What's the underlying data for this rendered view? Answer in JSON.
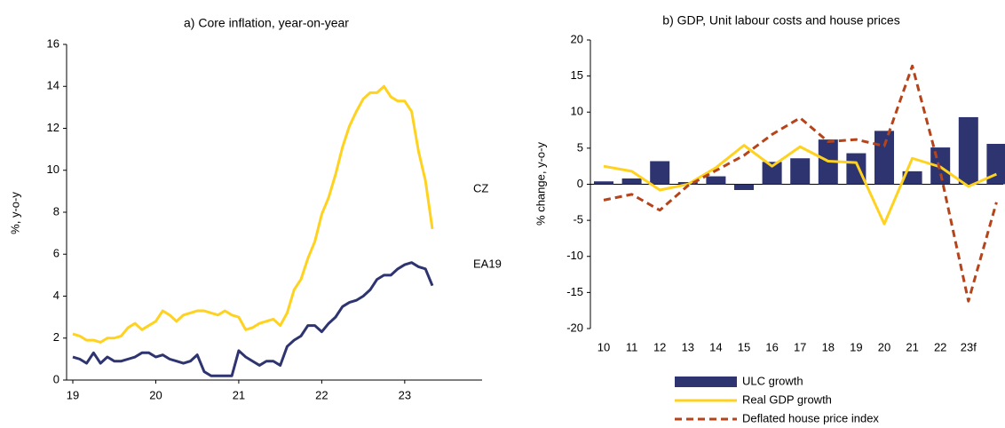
{
  "chart_data": [
    {
      "type": "line",
      "title": "a) Core inflation, year-on-year",
      "ylabel": "%, y-o-y",
      "categories": [
        "19",
        null,
        null,
        null,
        null,
        null,
        null,
        null,
        null,
        null,
        null,
        null,
        "20",
        null,
        null,
        null,
        null,
        null,
        null,
        null,
        null,
        null,
        null,
        null,
        "21",
        null,
        null,
        null,
        null,
        null,
        null,
        null,
        null,
        null,
        null,
        null,
        "22",
        null,
        null,
        null,
        null,
        null,
        null,
        null,
        null,
        null,
        null,
        null,
        "23",
        null,
        null,
        null,
        null
      ],
      "series": [
        {
          "name": "CZ",
          "color": "#ffd21f",
          "values": [
            2.2,
            2.1,
            1.9,
            1.9,
            1.8,
            2.0,
            2.0,
            2.1,
            2.5,
            2.7,
            2.4,
            2.6,
            2.8,
            3.3,
            3.1,
            2.8,
            3.1,
            3.2,
            3.3,
            3.3,
            3.2,
            3.1,
            3.3,
            3.1,
            3.0,
            2.4,
            2.5,
            2.7,
            2.8,
            2.9,
            2.6,
            3.2,
            4.3,
            4.8,
            5.8,
            6.6,
            7.9,
            8.7,
            9.8,
            11.1,
            12.1,
            12.8,
            13.4,
            13.7,
            13.7,
            14.0,
            13.5,
            13.3,
            13.3,
            12.8,
            10.9,
            9.5,
            7.2
          ]
        },
        {
          "name": "EA19",
          "color": "#2e3470",
          "values": [
            1.1,
            1.0,
            0.8,
            1.3,
            0.8,
            1.1,
            0.9,
            0.9,
            1.0,
            1.1,
            1.3,
            1.3,
            1.1,
            1.2,
            1.0,
            0.9,
            0.8,
            0.9,
            1.2,
            0.4,
            0.2,
            0.2,
            0.2,
            0.2,
            1.4,
            1.1,
            0.9,
            0.7,
            0.9,
            0.9,
            0.7,
            1.6,
            1.9,
            2.1,
            2.6,
            2.6,
            2.3,
            2.7,
            3.0,
            3.5,
            3.7,
            3.8,
            4.0,
            4.3,
            4.8,
            5.0,
            5.0,
            5.3,
            5.5,
            5.6,
            5.4,
            5.3,
            4.5
          ]
        }
      ],
      "ylim": [
        0,
        16
      ],
      "yticks": [
        0,
        2,
        4,
        6,
        8,
        10,
        12,
        14,
        16
      ]
    },
    {
      "type": "bar",
      "title": "b) GDP, Unit labour costs and house prices",
      "ylabel": "% change, y-o-y",
      "categories": [
        "10",
        "11",
        "12",
        "13",
        "14",
        "15",
        "16",
        "17",
        "18",
        "19",
        "20",
        "21",
        "22",
        "23f",
        null
      ],
      "series": [
        {
          "name": "ULC growth",
          "type": "bar",
          "color": "#2e3470",
          "values": [
            0.4,
            0.8,
            3.2,
            0.3,
            1.1,
            -0.8,
            3.1,
            3.6,
            6.2,
            4.3,
            7.4,
            1.8,
            5.1,
            9.3,
            5.6
          ]
        },
        {
          "name": "Real GDP growth",
          "type": "line",
          "color": "#ffd21f",
          "values": [
            2.5,
            1.8,
            -0.8,
            0.0,
            2.3,
            5.4,
            2.5,
            5.2,
            3.2,
            3.0,
            -5.5,
            3.6,
            2.4,
            -0.3,
            1.4
          ]
        },
        {
          "name": "Deflated house price index",
          "type": "line",
          "dashed": true,
          "color": "#b5441b",
          "values": [
            -2.2,
            -1.4,
            -3.6,
            -0.2,
            1.9,
            4.0,
            6.9,
            9.2,
            5.9,
            6.2,
            5.3,
            16.4,
            1.7,
            -16.2,
            -2.5
          ]
        }
      ],
      "ylim": [
        -20,
        20
      ],
      "yticks": [
        -20,
        -15,
        -10,
        -5,
        0,
        5,
        10,
        15,
        20
      ]
    }
  ]
}
